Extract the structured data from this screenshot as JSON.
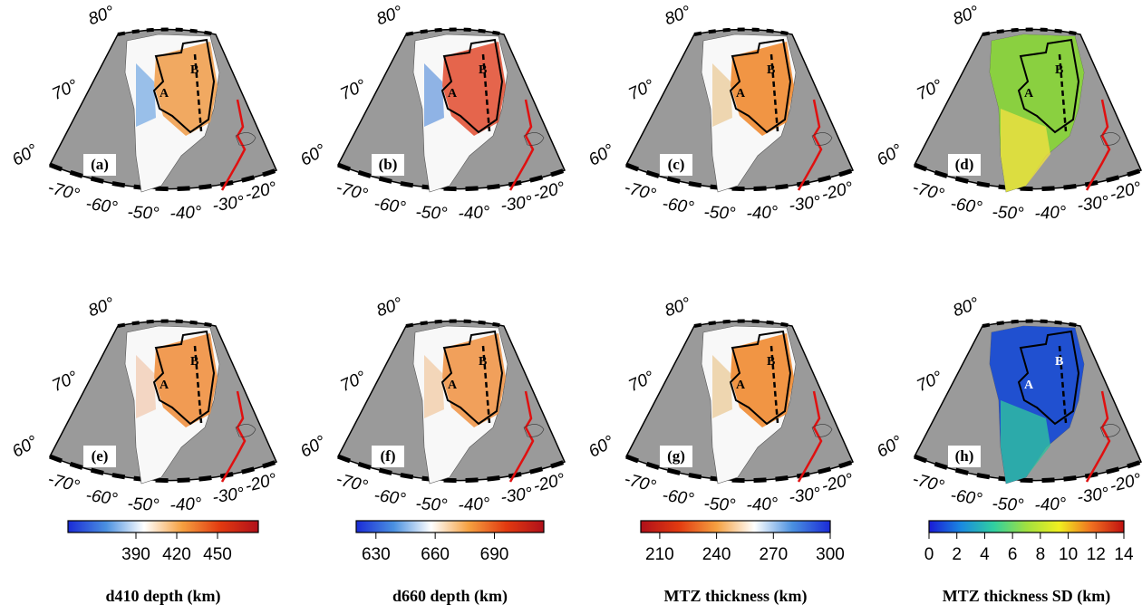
{
  "panels": [
    {
      "label": "(a)"
    },
    {
      "label": "(b)"
    },
    {
      "label": "(c)"
    },
    {
      "label": "(d)"
    },
    {
      "label": "(e)"
    },
    {
      "label": "(f)"
    },
    {
      "label": "(g)"
    },
    {
      "label": "(h)"
    }
  ],
  "lat_labels": [
    "80°",
    "70°",
    "60°"
  ],
  "lon_labels": [
    "-70°",
    "-60°",
    "-50°",
    "-40°",
    "-30°",
    "-20°"
  ],
  "region_labels": [
    "A",
    "B"
  ],
  "colorbars": [
    {
      "title": "d410 depth (km)",
      "lim": [
        340,
        480
      ],
      "ticks": [
        390,
        420,
        450
      ],
      "colors": [
        "#1a2bd6",
        "#4a90e0",
        "#ffffff",
        "#f5a040",
        "#e23a10",
        "#b0101a"
      ]
    },
    {
      "title": "d660 depth (km)",
      "lim": [
        620,
        715
      ],
      "ticks": [
        630,
        660,
        690
      ],
      "colors": [
        "#1a2bd6",
        "#4a90e0",
        "#ffffff",
        "#f5a040",
        "#e23a10",
        "#b0101a"
      ]
    },
    {
      "title": "MTZ thickness (km)",
      "lim": [
        200,
        300
      ],
      "ticks": [
        210,
        240,
        270,
        300
      ],
      "colors": [
        "#b0101a",
        "#e23a10",
        "#f5a040",
        "#ffffff",
        "#4a90e0",
        "#1a2bd6"
      ]
    },
    {
      "title": "MTZ thickness SD (km)",
      "lim": [
        0,
        14
      ],
      "ticks": [
        0,
        2,
        4,
        6,
        8,
        10,
        12,
        14
      ],
      "colors": [
        "#1a1ad6",
        "#1a8ae0",
        "#30d0a0",
        "#a0e040",
        "#f0f020",
        "#f07020",
        "#c01010"
      ]
    }
  ]
}
